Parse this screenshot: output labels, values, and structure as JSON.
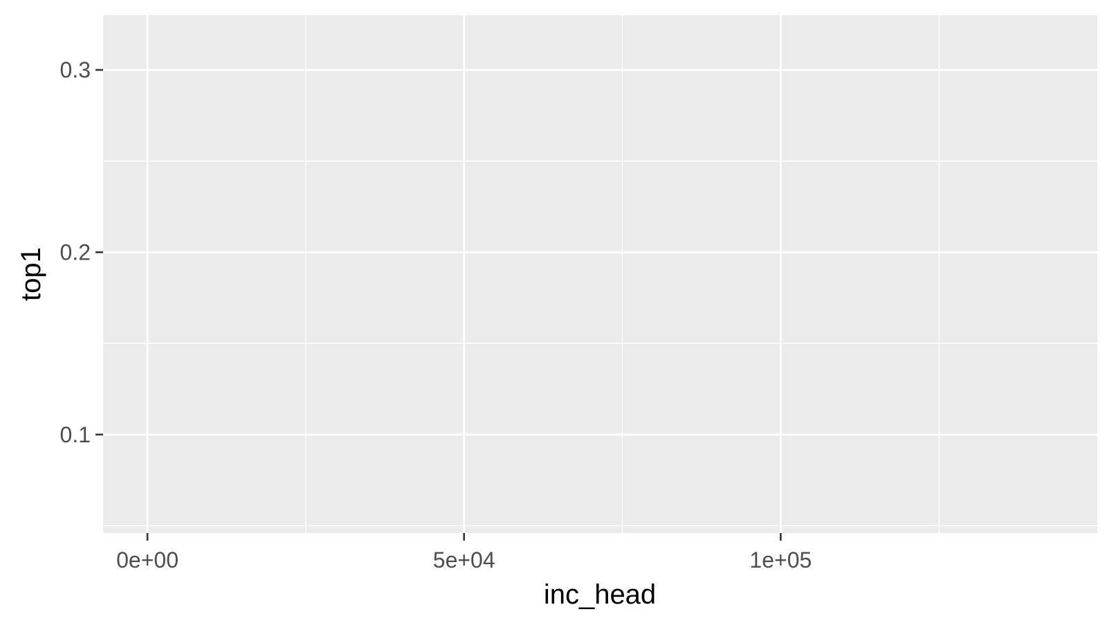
{
  "chart_data": {
    "type": "scatter",
    "title": "",
    "xlabel": "inc_head",
    "ylabel": "top1",
    "xlim": [
      -7000,
      150000
    ],
    "ylim": [
      0.046,
      0.33
    ],
    "x_ticks": [
      0,
      50000,
      100000
    ],
    "x_tick_labels": [
      "0e+00",
      "5e+04",
      "1e+05"
    ],
    "x_minor": [
      25000,
      75000,
      125000
    ],
    "y_ticks": [
      0.1,
      0.2,
      0.3
    ],
    "y_tick_labels": [
      "0.1",
      "0.2",
      "0.3"
    ],
    "y_minor": [
      0.05,
      0.15,
      0.25
    ],
    "grid": true,
    "series": [
      {
        "values": []
      }
    ]
  }
}
